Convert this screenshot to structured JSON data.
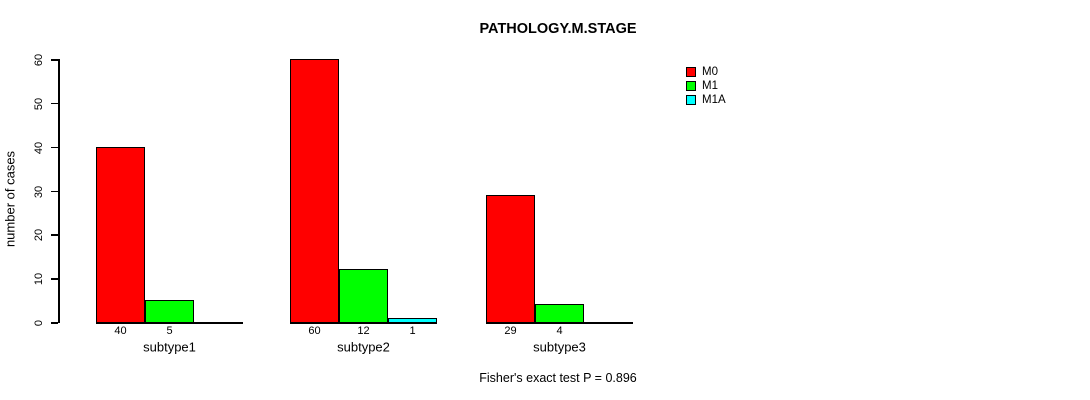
{
  "title": "PATHOLOGY.M.STAGE",
  "ylabel": "number of cases",
  "footer": "Fisher's exact test P = 0.896",
  "colors": {
    "M0": "#ff0000",
    "M1": "#00ff00",
    "M1A": "#00ffff",
    "axis": "#000000",
    "background": "#ffffff"
  },
  "chart_data": {
    "type": "bar",
    "title": "PATHOLOGY.M.STAGE",
    "xlabel": "",
    "ylabel": "number of cases",
    "categories": [
      "subtype1",
      "subtype2",
      "subtype3"
    ],
    "series": [
      {
        "name": "M0",
        "color": "#ff0000",
        "values": [
          40,
          60,
          29
        ]
      },
      {
        "name": "M1",
        "color": "#00ff00",
        "values": [
          5,
          12,
          4
        ]
      },
      {
        "name": "M1A",
        "color": "#00ffff",
        "values": [
          0,
          1,
          0
        ]
      }
    ],
    "ylim": [
      0,
      60
    ],
    "yticks": [
      0,
      10,
      20,
      30,
      40,
      50,
      60
    ],
    "grid": false,
    "bar_value_labels_shown": true,
    "legend_position": "top-right",
    "annotation": "Fisher's exact test P = 0.896"
  }
}
